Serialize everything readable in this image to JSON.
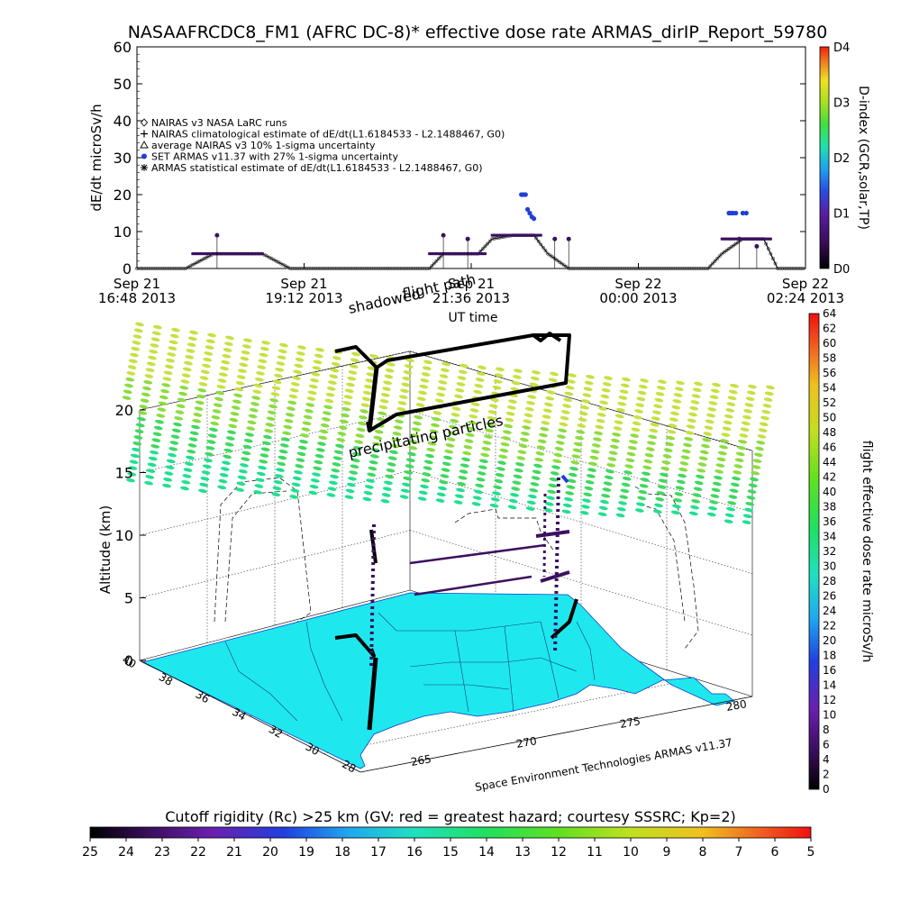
{
  "title": "NASAAFRCDC8_FM1 (AFRC DC-8)* effective dose rate ARMAS_dirIP_Report_59780",
  "colors": {
    "aircraft_path": "#000000",
    "set_armas": "#1f3fd6",
    "map_fill": "#1ee8ee",
    "background": "#ffffff"
  },
  "chart_data": [
    {
      "type": "scatter",
      "id": "time-series",
      "ylabel": "dE/dt microSv/h",
      "xlabel": "UT time",
      "ylim": [
        0,
        60
      ],
      "yticks": [
        "0",
        "10",
        "20",
        "30",
        "40",
        "50",
        "60"
      ],
      "xticks": [
        {
          "line1": "Sep 21",
          "line2": "16:48 2013"
        },
        {
          "line1": "Sep 21",
          "line2": "19:12 2013"
        },
        {
          "line1": "Sep 21",
          "line2": "21:36 2013"
        },
        {
          "line1": "Sep 22",
          "line2": "00:00 2013"
        },
        {
          "line1": "Sep 22",
          "line2": "02:24 2013"
        }
      ],
      "xlim_hours_since_sep21": [
        16.8,
        26.4
      ],
      "legend": [
        {
          "marker": "diamond",
          "label": "NAIRAS v3 NASA LaRC runs"
        },
        {
          "marker": "plus",
          "label": "NAIRAS climatological estimate of dE/dt(L1.6184533 - L2.1488467, G0)"
        },
        {
          "marker": "triangle",
          "label": "average NAIRAS v3 10% 1-sigma uncertainty"
        },
        {
          "marker": "dot",
          "label": "SET ARMAS v11.37 with 27% 1-sigma uncertainty"
        },
        {
          "marker": "asterisk",
          "label": "ARMAS statistical estimate of dE/dt(L1.6184533 - L2.1488467, G0)"
        }
      ],
      "legend_position": "upper-left",
      "series": [
        {
          "name": "NAIRAS climatological estimate",
          "x_hours": [
            16.8,
            17.5,
            17.7,
            17.9,
            18.2,
            18.6,
            19.0,
            20.0,
            21.0,
            21.2,
            21.7,
            21.9,
            22.2,
            22.5,
            22.7,
            23.0,
            24.0,
            25.0,
            25.2,
            25.5,
            25.8,
            26.0,
            26.4
          ],
          "y": [
            0,
            0,
            2,
            4,
            4,
            4,
            0,
            0,
            0,
            4,
            4,
            8,
            9,
            9,
            4,
            0,
            0,
            0,
            4,
            8,
            8,
            0,
            0
          ]
        },
        {
          "name": "SET ARMAS v11.37",
          "x_hours": [
            22.32,
            22.35,
            22.38,
            22.41,
            22.44,
            22.47,
            22.5,
            25.3,
            25.33,
            25.36,
            25.4,
            25.5,
            25.55
          ],
          "y": [
            20,
            20,
            20,
            16,
            15,
            14,
            13.5,
            15,
            15,
            15,
            15,
            15,
            15
          ]
        }
      ],
      "dindex_colorbar": {
        "label": "D-index (GCR,solar,TP)",
        "ticks": [
          "D0",
          "D1",
          "D2",
          "D3",
          "D4"
        ],
        "tick_values": [
          0,
          1,
          2,
          3,
          4
        ]
      }
    },
    {
      "type": "map3d",
      "id": "flight-3d",
      "zlabel": "Altitude (km)",
      "zticks": [
        "0",
        "5",
        "10",
        "15",
        "20"
      ],
      "lat_ticks": [
        "28",
        "30",
        "32",
        "34",
        "36",
        "38",
        "40"
      ],
      "lon_ticks": [
        "265",
        "270",
        "275",
        "280"
      ],
      "annotations": [
        "flight path",
        "shadowed",
        "precipitating particles"
      ],
      "credit": "Space Environment Technologies ARMAS v11.37",
      "dose_colorbar": {
        "label": "flight effective dose rate microSv/h",
        "ticks": [
          "0",
          "2",
          "4",
          "6",
          "8",
          "10",
          "12",
          "14",
          "16",
          "18",
          "20",
          "22",
          "24",
          "26",
          "28",
          "30",
          "32",
          "34",
          "36",
          "38",
          "40",
          "42",
          "44",
          "46",
          "48",
          "50",
          "52",
          "54",
          "56",
          "58",
          "60",
          "62",
          "64"
        ],
        "range": [
          0,
          64
        ]
      },
      "rigidity_colorbar": {
        "label": "Cutoff rigidity (Rc) >25 km (GV: red = greatest hazard; courtesy SSSRC; Kp=2)",
        "ticks": [
          "25",
          "24",
          "23",
          "22",
          "21",
          "20",
          "19",
          "18",
          "17",
          "16",
          "15",
          "14",
          "13",
          "12",
          "11",
          "10",
          "9",
          "8",
          "7",
          "6",
          "5"
        ]
      }
    }
  ]
}
